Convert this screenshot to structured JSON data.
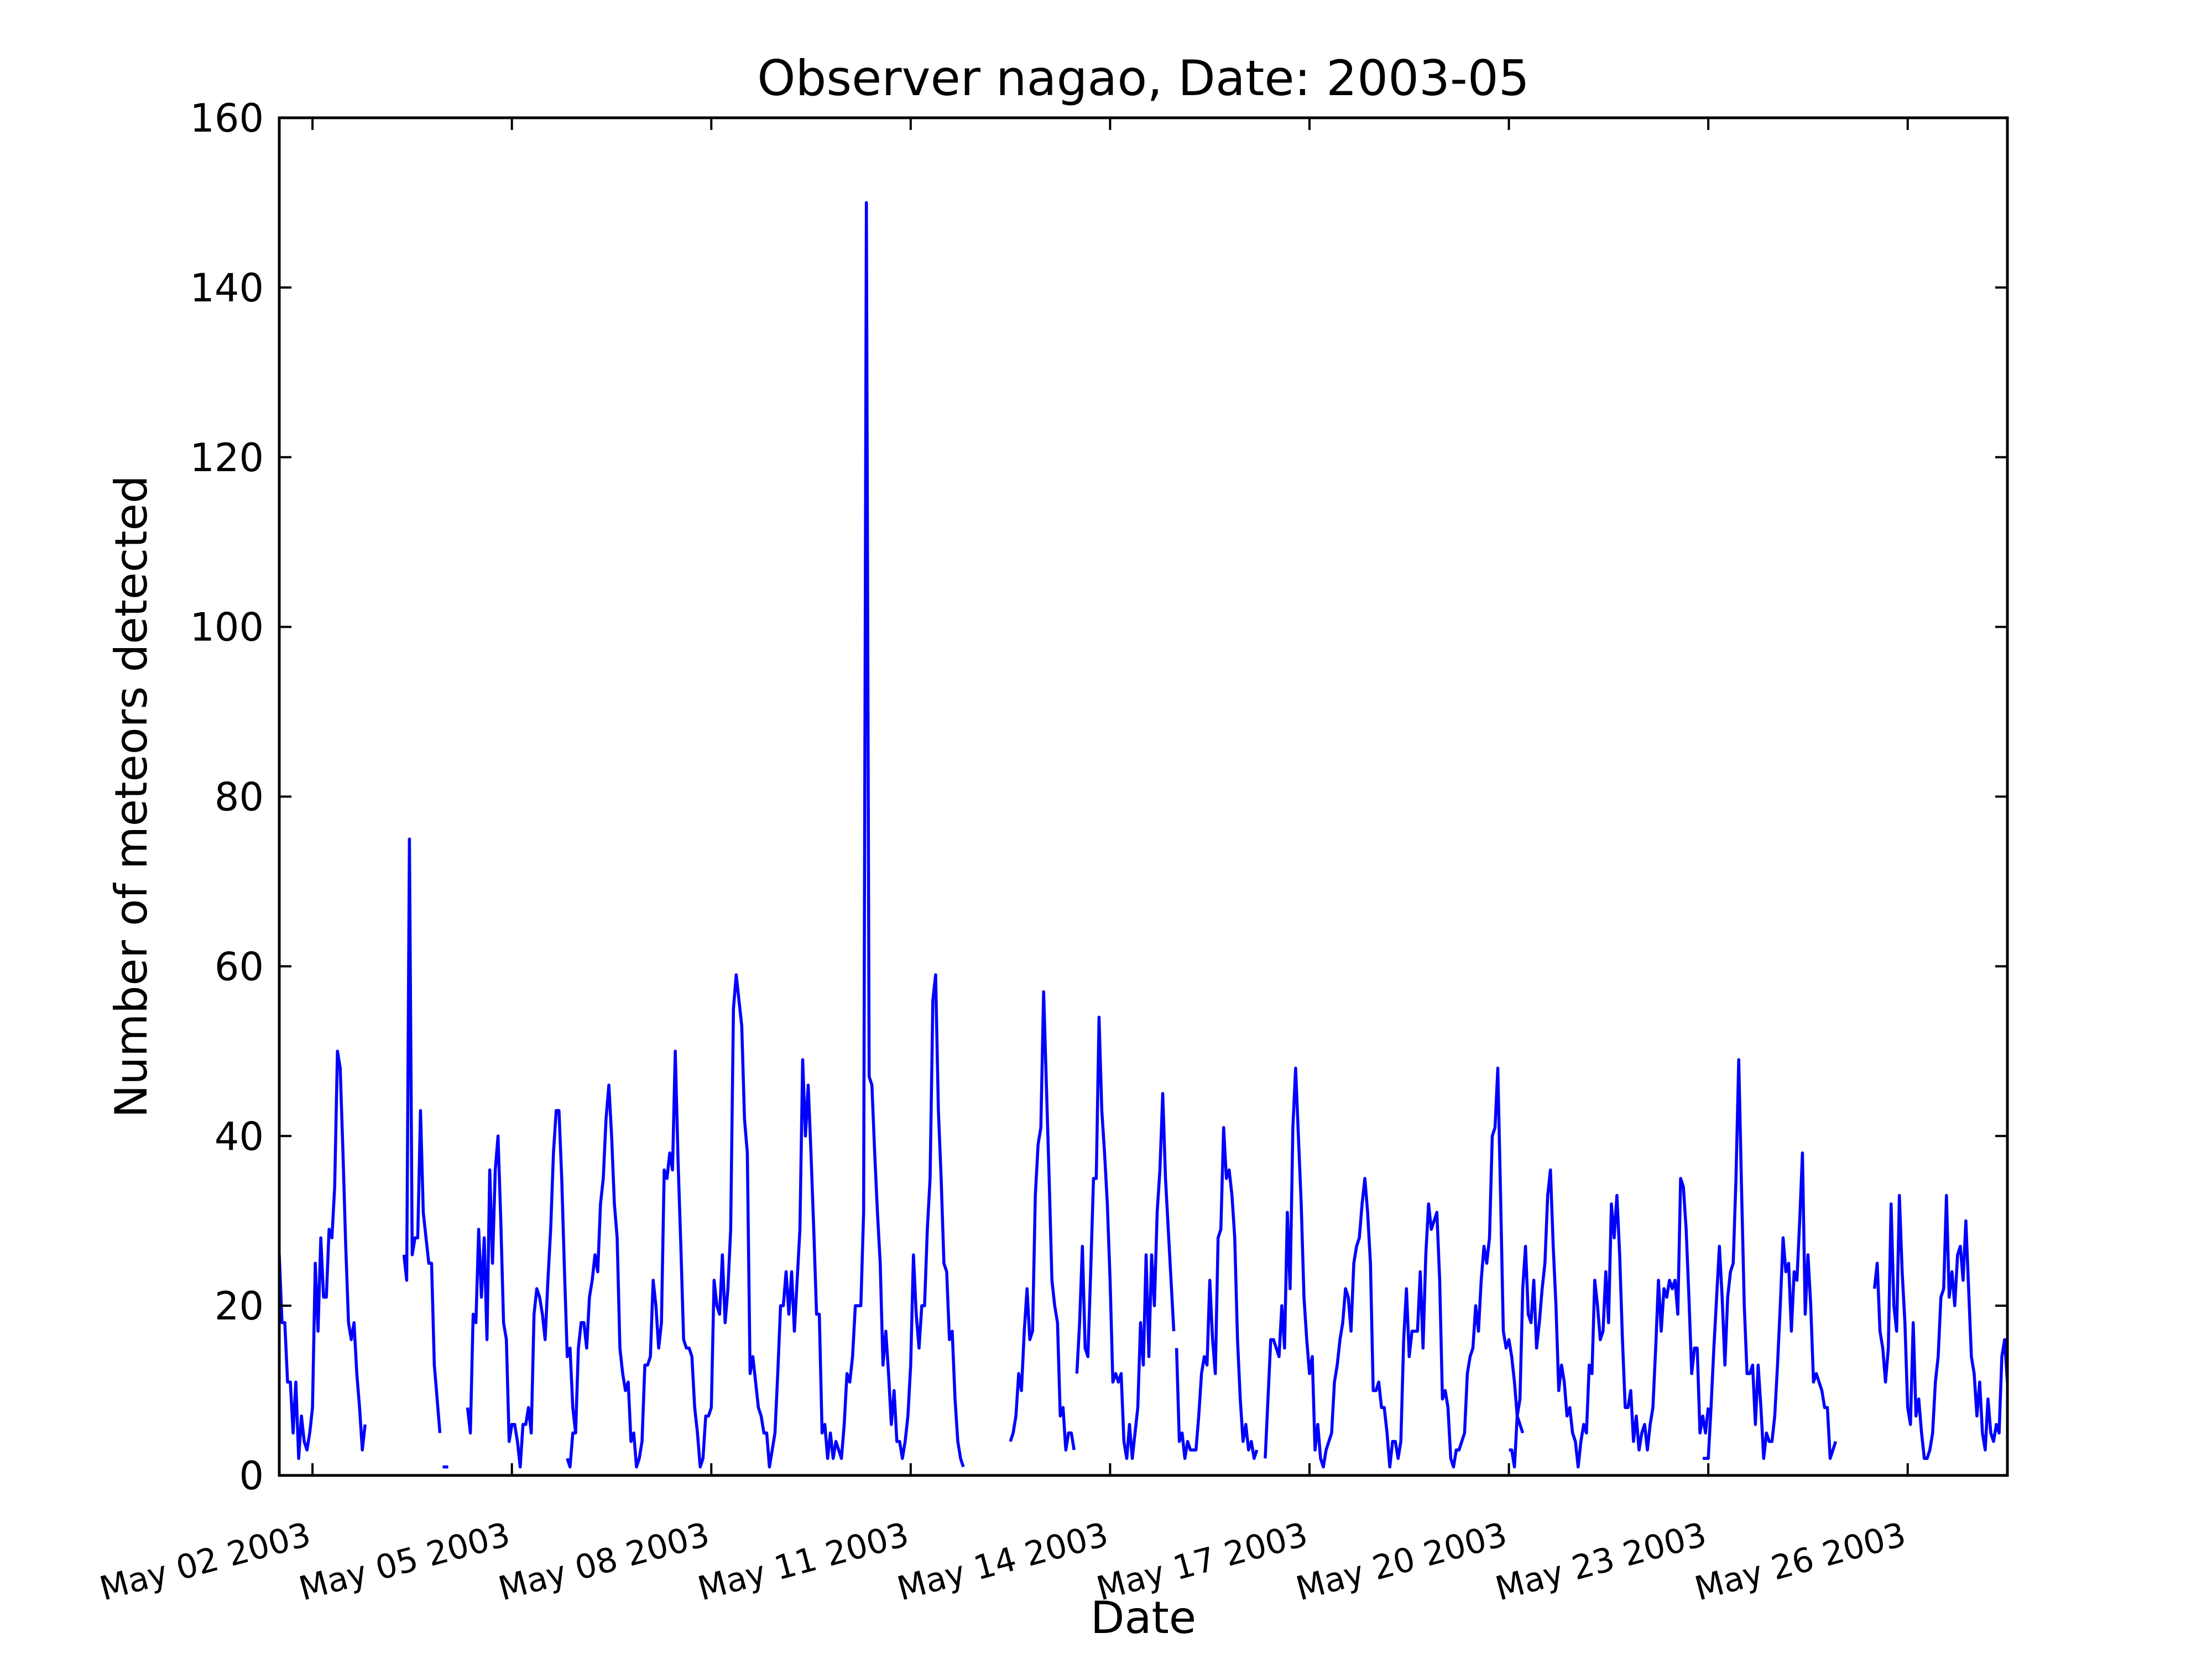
{
  "chart_data": {
    "type": "line",
    "title": "Observer nagao, Date: 2003-05",
    "xlabel": "Date",
    "ylabel": "Number of meteors detected",
    "xlim": [
      "2003-05-01 12:00",
      "2003-05-27 12:00"
    ],
    "ylim": [
      0,
      160
    ],
    "yticks": [
      0,
      20,
      40,
      60,
      80,
      100,
      120,
      140,
      160
    ],
    "xticks": [
      {
        "date": "2003-05-02",
        "label": "May 02 2003"
      },
      {
        "date": "2003-05-05",
        "label": "May 05 2003"
      },
      {
        "date": "2003-05-08",
        "label": "May 08 2003"
      },
      {
        "date": "2003-05-11",
        "label": "May 11 2003"
      },
      {
        "date": "2003-05-14",
        "label": "May 14 2003"
      },
      {
        "date": "2003-05-17",
        "label": "May 17 2003"
      },
      {
        "date": "2003-05-20",
        "label": "May 20 2003"
      },
      {
        "date": "2003-05-23",
        "label": "May 23 2003"
      },
      {
        "date": "2003-05-26",
        "label": "May 26 2003"
      }
    ],
    "grid": false,
    "line_color": "#0000ff",
    "series": [
      {
        "segments": [
          {
            "start": "2003-05-01 12:00",
            "values": [
              26,
              18,
              18,
              11,
              11,
              5,
              11,
              2,
              7,
              4,
              3,
              5,
              8,
              25,
              17,
              28,
              21,
              21,
              29,
              28,
              34,
              50,
              48,
              38,
              27,
              18,
              16,
              18,
              12,
              8,
              3,
              6
            ]
          },
          {
            "start": "2003-05-03 09:00",
            "values": [
              26,
              23,
              75,
              26,
              28,
              28,
              43,
              31,
              28,
              25,
              25,
              13,
              9,
              5
            ]
          },
          {
            "start": "2003-05-03 23:00",
            "values": [
              1,
              1,
              1
            ]
          },
          {
            "start": "2003-05-04 08:00",
            "values": [
              8,
              5,
              19,
              18,
              29,
              21,
              28,
              16,
              36,
              25,
              36,
              40,
              30,
              18,
              16,
              4,
              6,
              6,
              4,
              1,
              6,
              6,
              8,
              5,
              19,
              22,
              21,
              19,
              16,
              23,
              29,
              38,
              43,
              43,
              35,
              24,
              14,
              15,
              8,
              5
            ]
          },
          {
            "start": "2003-05-05 20:00",
            "values": [
              2,
              1,
              5,
              5,
              15,
              18,
              18,
              15,
              21,
              23,
              26,
              24,
              32,
              35,
              42,
              46,
              40,
              32,
              28,
              15,
              12,
              10,
              11,
              4,
              5,
              1,
              2,
              4,
              13,
              13,
              14,
              23,
              20,
              15,
              18,
              36,
              35,
              38,
              36,
              50,
              37,
              27,
              16,
              15,
              15,
              14,
              8,
              5,
              1,
              2,
              7,
              7,
              8,
              23,
              20,
              19,
              26,
              18,
              22,
              29,
              55,
              59,
              56,
              53,
              42,
              38,
              12,
              14,
              11,
              8,
              7,
              5,
              5,
              1,
              3,
              5,
              12,
              20,
              20,
              24,
              19,
              24,
              17,
              23,
              29,
              49,
              40,
              46,
              38,
              29,
              19,
              19,
              5,
              6,
              2,
              5,
              2,
              4,
              3,
              2,
              6,
              12,
              11,
              14,
              20,
              20,
              20,
              31,
              150,
              47,
              46,
              38,
              31,
              25,
              13,
              17,
              12,
              6,
              10,
              4,
              4,
              2,
              4,
              7,
              13,
              26,
              19,
              15,
              20,
              20,
              29,
              35,
              56,
              59,
              43,
              35,
              25,
              24,
              16,
              17,
              9,
              4,
              2,
              1
            ]
          },
          {
            "start": "2003-05-12 12:00",
            "values": [
              4,
              5,
              7,
              12,
              10,
              17,
              22,
              16,
              17,
              33,
              39,
              41,
              57,
              46,
              35,
              23,
              20,
              18,
              7,
              8,
              3,
              5,
              5,
              3
            ]
          },
          {
            "start": "2003-05-13 12:00",
            "values": [
              12,
              18,
              27,
              15,
              14,
              24,
              35,
              35,
              54,
              43,
              38,
              32,
              23,
              11,
              12,
              11,
              12,
              4,
              2,
              6,
              2,
              5,
              8,
              18,
              13,
              26,
              14,
              26,
              20,
              31,
              36,
              45,
              35,
              29,
              23,
              17
            ]
          },
          {
            "start": "2003-05-15 00:00",
            "values": [
              15,
              4,
              5,
              2,
              4,
              3,
              3,
              3,
              7,
              12,
              14,
              13,
              23,
              16,
              12,
              28,
              29,
              41,
              35,
              36,
              33,
              28,
              16,
              9,
              4,
              6,
              3,
              4,
              2,
              3
            ]
          },
          {
            "start": "2003-05-16 08:00",
            "values": [
              2,
              9,
              16,
              16,
              15,
              14,
              20,
              15,
              31,
              22,
              41,
              48,
              40,
              32,
              21,
              16,
              12,
              14,
              3,
              6,
              2,
              1,
              3,
              4,
              5,
              11,
              13,
              16,
              18,
              22,
              21,
              17,
              25,
              27,
              28,
              32,
              35,
              31,
              25,
              10,
              10,
              11,
              8,
              8,
              5,
              1,
              4,
              4,
              2,
              4,
              16,
              22,
              14,
              17,
              17,
              17,
              24,
              15,
              26,
              32,
              29,
              30,
              31,
              23,
              9,
              10,
              8,
              2,
              1,
              3,
              3,
              4,
              5,
              12,
              14,
              15,
              20,
              17,
              23,
              27,
              25,
              28,
              40,
              41,
              48,
              33,
              17,
              15,
              16,
              14,
              11,
              7,
              6,
              5
            ]
          },
          {
            "start": "2003-05-20 00:00",
            "values": [
              3,
              3,
              1,
              7,
              9,
              22,
              27,
              19,
              18,
              23,
              15,
              18,
              22,
              25,
              33,
              36,
              27,
              20,
              10,
              13,
              11,
              7,
              8,
              5,
              4,
              1,
              4,
              6,
              5,
              13,
              12,
              23,
              20,
              16,
              17,
              24,
              18,
              32,
              28,
              33,
              26,
              16,
              8,
              8,
              10,
              4,
              7,
              3,
              5,
              6,
              3,
              6,
              8,
              15,
              23,
              17,
              22,
              21,
              23,
              22,
              23,
              19,
              35,
              34,
              29,
              21,
              12,
              15,
              15,
              5,
              7,
              5,
              8
            ]
          },
          {
            "start": "2003-05-22 22:00",
            "values": [
              2,
              2,
              2,
              8,
              15,
              21,
              27,
              21,
              13,
              21,
              24,
              25,
              35,
              49,
              34,
              20,
              12,
              12,
              13,
              6,
              13,
              8,
              2,
              5,
              4,
              4,
              7,
              13,
              20,
              28,
              24,
              25,
              17,
              24,
              23,
              30,
              38,
              19,
              26,
              20,
              11,
              12,
              11,
              10,
              8,
              8,
              2,
              3,
              4
            ]
          },
          {
            "start": "2003-05-25 12:00",
            "values": [
              22,
              25,
              17,
              15,
              11,
              15,
              32,
              20,
              17,
              33,
              24,
              18,
              8,
              6,
              18,
              7,
              9,
              5,
              2,
              2,
              3,
              5,
              11,
              14,
              21,
              22,
              33,
              21,
              24,
              20,
              26,
              27,
              23,
              30,
              22,
              14,
              12,
              7,
              11,
              5,
              3,
              9,
              5,
              4,
              6,
              5,
              14,
              16,
              11,
              28,
              18,
              22,
              22,
              25,
              28,
              29,
              25
            ]
          }
        ]
      }
    ]
  }
}
